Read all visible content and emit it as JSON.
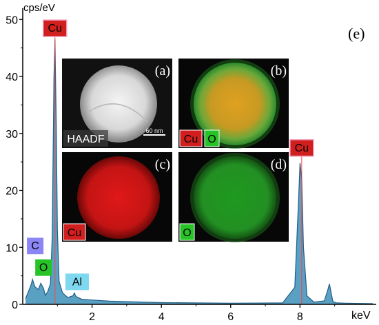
{
  "chart_data": {
    "type": "area",
    "panel_label": "(e)",
    "ylabel": "cps/eV",
    "xlabel": "keV",
    "xlim": [
      0,
      10.2
    ],
    "ylim": [
      0,
      51
    ],
    "x_ticks": [
      2,
      4,
      6,
      8
    ],
    "y_ticks": [
      0,
      10,
      20,
      30,
      40,
      50
    ],
    "grid": false,
    "legend": "none",
    "colors": {
      "spectrum_fill": "#3d8fb8",
      "spectrum_line": "#1f5f86",
      "peak_line": "#ff4040"
    },
    "series": [
      {
        "x": [
          0.08,
          0.15,
          0.25,
          0.28,
          0.35,
          0.45,
          0.52,
          0.6,
          0.65,
          0.72,
          0.8,
          0.85,
          0.9,
          0.93,
          0.97,
          1.0,
          1.05,
          1.15,
          1.3,
          1.45,
          1.49,
          1.53,
          1.7,
          2.5,
          4.0,
          6.0,
          7.5,
          7.85,
          7.95,
          8.0,
          8.05,
          8.1,
          8.2,
          8.4,
          8.7,
          8.8,
          8.85,
          8.9,
          8.95,
          9.05,
          9.3,
          10.1
        ],
        "values": [
          1.0,
          2.0,
          3.6,
          4.4,
          3.1,
          2.6,
          3.7,
          2.8,
          1.6,
          2.2,
          3.6,
          12,
          40,
          46.5,
          30,
          13,
          4,
          2,
          1.2,
          1.5,
          2.0,
          1.4,
          0.9,
          0.55,
          0.3,
          0.2,
          0.25,
          3,
          17,
          24.8,
          22,
          10,
          1.5,
          0.4,
          0.6,
          2.5,
          3.6,
          2.0,
          0.5,
          0.25,
          0.2,
          0.12
        ]
      }
    ],
    "peak_labels": [
      {
        "label": "Cu",
        "x": 0.93,
        "y": 47,
        "color": "#d11f1f",
        "peak": true
      },
      {
        "label": "Cu",
        "x": 8.05,
        "y": 26,
        "color": "#d11f1f",
        "peak": true
      },
      {
        "label": "C",
        "x": 0.28,
        "y": 8.8,
        "color": "#8b85f5",
        "peak": false
      },
      {
        "label": "O",
        "x": 0.52,
        "y": 5.0,
        "color": "#27c427",
        "peak": false
      },
      {
        "label": "Al",
        "x": 1.49,
        "y": 2.5,
        "color": "#7dd8f0",
        "peak": false
      }
    ]
  },
  "insets": [
    {
      "letter": "(a)",
      "labels": [
        {
          "text": "HAADF",
          "color": "#ffffff"
        }
      ],
      "scale_bar": "60 nm",
      "image": "haadf"
    },
    {
      "letter": "(b)",
      "labels": [
        {
          "text": "Cu",
          "color": "#d11f1f"
        },
        {
          "text": "O",
          "color": "#27c427"
        }
      ],
      "scale_bar": "",
      "image": "overlay"
    },
    {
      "letter": "(c)",
      "labels": [
        {
          "text": "Cu",
          "color": "#d11f1f"
        }
      ],
      "scale_bar": "",
      "image": "cu"
    },
    {
      "letter": "(d)",
      "labels": [
        {
          "text": "O",
          "color": "#27c427"
        }
      ],
      "scale_bar": "",
      "image": "o"
    }
  ]
}
